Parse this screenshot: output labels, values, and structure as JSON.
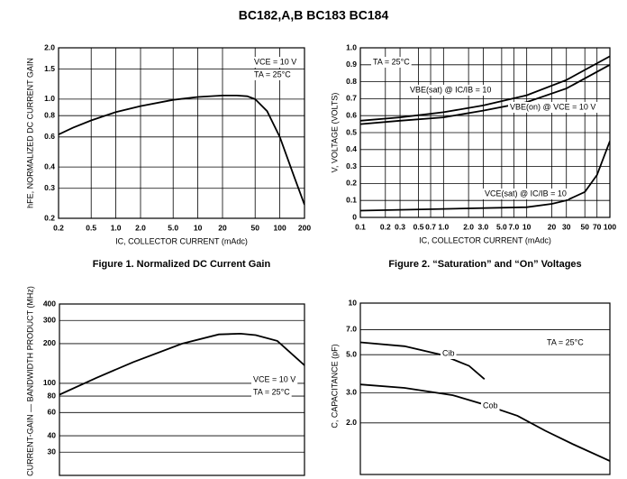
{
  "header": {
    "title": "BC182,A,B BC183 BC184"
  },
  "chart_data": [
    {
      "type": "line",
      "title": "Figure 1. Normalized DC Current Gain",
      "x_label": "IC, COLLECTOR CURRENT (mAdc)",
      "y_label": "hFE, NORMALIZED DC CURRENT GAIN",
      "xlog": true,
      "ylog": true,
      "grid": true,
      "xlim": [
        0.2,
        200
      ],
      "ylim": [
        0.2,
        2
      ],
      "xticks": [
        0.2,
        0.5,
        {
          "value": 1,
          "label": "1.0"
        },
        {
          "value": 2,
          "label": "2.0"
        },
        {
          "value": 5,
          "label": "5.0"
        },
        10,
        20,
        50,
        100,
        200
      ],
      "yticks": [
        0.2,
        0.3,
        0.4,
        0.6,
        0.8,
        {
          "value": 1,
          "label": "1.0"
        },
        1.5,
        {
          "value": 2,
          "label": "2.0"
        }
      ],
      "series": [
        {
          "color": "#000000",
          "x": [
            0.2,
            0.3,
            0.5,
            1,
            2,
            5,
            10,
            20,
            30,
            40,
            50,
            70,
            100,
            150,
            200
          ],
          "values": [
            0.62,
            0.68,
            0.75,
            0.84,
            0.91,
            0.99,
            1.03,
            1.05,
            1.05,
            1.04,
            1.0,
            0.85,
            0.6,
            0.35,
            0.24
          ]
        }
      ],
      "annotations": [
        "VCE = 10 V",
        "TA = 25°C"
      ]
    },
    {
      "type": "line",
      "title": "Figure 2. “Saturation” and “On” Voltages",
      "x_label": "IC, COLLECTOR CURRENT (mAdc)",
      "y_label": "V, VOLTAGE (VOLTS)",
      "xlog": true,
      "ylog": false,
      "grid": true,
      "xlim": [
        0.1,
        100
      ],
      "ylim": [
        0,
        1
      ],
      "xticks": [
        0.1,
        0.2,
        0.3,
        0.5,
        0.7,
        {
          "value": 1,
          "label": "1.0"
        },
        {
          "value": 2,
          "label": "2.0"
        },
        {
          "value": 3,
          "label": "3.0"
        },
        {
          "value": 5,
          "label": "5.0"
        },
        {
          "value": 7,
          "label": "7.0"
        },
        10,
        20,
        30,
        50,
        70,
        100
      ],
      "yticks": [
        0,
        0.1,
        0.2,
        0.3,
        0.4,
        0.5,
        0.6,
        0.7,
        0.8,
        0.9,
        {
          "value": 1,
          "label": "1.0"
        }
      ],
      "series": [
        {
          "name": "VBE(sat) @ IC/IB = 10",
          "color": "#000000",
          "x": [
            0.1,
            0.3,
            1,
            3,
            10,
            30,
            100
          ],
          "values": [
            0.57,
            0.59,
            0.62,
            0.66,
            0.72,
            0.81,
            0.95
          ]
        },
        {
          "name": "VBE(on) @ VCE = 10 V",
          "color": "#000000",
          "x": [
            0.1,
            0.3,
            1,
            3,
            10,
            30,
            100
          ],
          "values": [
            0.55,
            0.57,
            0.59,
            0.63,
            0.68,
            0.76,
            0.9
          ]
        },
        {
          "name": "VCE(sat) @ IC/IB = 10",
          "color": "#000000",
          "x": [
            0.1,
            1,
            10,
            20,
            30,
            50,
            70,
            100
          ],
          "values": [
            0.04,
            0.05,
            0.06,
            0.08,
            0.1,
            0.15,
            0.25,
            0.45
          ]
        }
      ],
      "annotations": [
        "TA = 25°C"
      ]
    },
    {
      "type": "line",
      "y_label": "fT, CURRENT-GAIN — BANDWIDTH PRODUCT (MHz)",
      "xlog": true,
      "ylog": true,
      "grid": true,
      "xlim": [
        0.5,
        50
      ],
      "ylim": [
        20,
        400
      ],
      "yticks": [
        30,
        40,
        60,
        80,
        100,
        200,
        300,
        400
      ],
      "series": [
        {
          "color": "#000000",
          "x": [
            0.5,
            1,
            2,
            5,
            10,
            15,
            20,
            30,
            50
          ],
          "values": [
            82,
            110,
            145,
            200,
            235,
            238,
            232,
            210,
            137
          ]
        }
      ],
      "annotations": [
        "VCE = 10 V",
        "TA = 25°C"
      ]
    },
    {
      "type": "line",
      "y_label": "C, CAPACITANCE (pF)",
      "xlog": true,
      "ylog": true,
      "grid": true,
      "xlim": [
        0.1,
        50
      ],
      "ylim": [
        1,
        10
      ],
      "yticks": [
        {
          "value": 2,
          "label": "2.0"
        },
        {
          "value": 3,
          "label": "3.0"
        },
        {
          "value": 5,
          "label": "5.0"
        },
        {
          "value": 7,
          "label": "7.0"
        },
        10
      ],
      "series": [
        {
          "name": "Cib",
          "color": "#000000",
          "x": [
            0.1,
            0.3,
            0.75,
            1.5,
            2.2
          ],
          "values": [
            5.9,
            5.6,
            5.0,
            4.3,
            3.6
          ]
        },
        {
          "name": "Cob",
          "color": "#000000",
          "x": [
            0.1,
            0.3,
            1,
            2,
            5,
            10,
            20,
            50
          ],
          "values": [
            3.35,
            3.2,
            2.9,
            2.6,
            2.2,
            1.8,
            1.5,
            1.2
          ]
        }
      ],
      "annotations": [
        "TA = 25°C"
      ]
    }
  ]
}
